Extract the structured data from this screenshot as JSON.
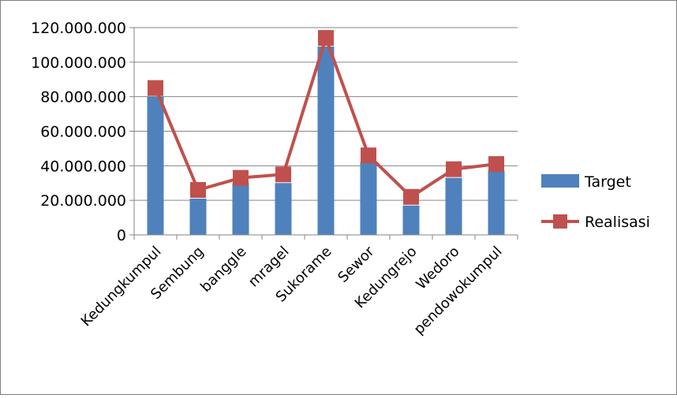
{
  "chart_data": {
    "type": "bar",
    "categories": [
      "Kedungkumpul",
      "Sembung",
      "banggle",
      "mragel",
      "Sukorame",
      "Sewor",
      "Kedungrejo",
      "Wedoro",
      "pendowokumpul"
    ],
    "series": [
      {
        "name": "Target",
        "type": "bar",
        "color": "#4f81bd",
        "values": [
          80000000,
          21000000,
          30000000,
          30000000,
          109000000,
          42000000,
          17000000,
          33000000,
          37000000
        ]
      },
      {
        "name": "Realisasi",
        "type": "line",
        "marker": "square",
        "color": "#c0504d",
        "values": [
          85000000,
          26000000,
          33000000,
          35000000,
          114000000,
          46000000,
          22000000,
          38000000,
          41000000
        ]
      }
    ],
    "y_ticks": [
      "0",
      "20.000.000",
      "40.000.000",
      "60.000.000",
      "80.000.000",
      "100.000.000",
      "120.000.000"
    ],
    "ylim": [
      0,
      120000000
    ],
    "grid": true,
    "legend_position": "right"
  }
}
